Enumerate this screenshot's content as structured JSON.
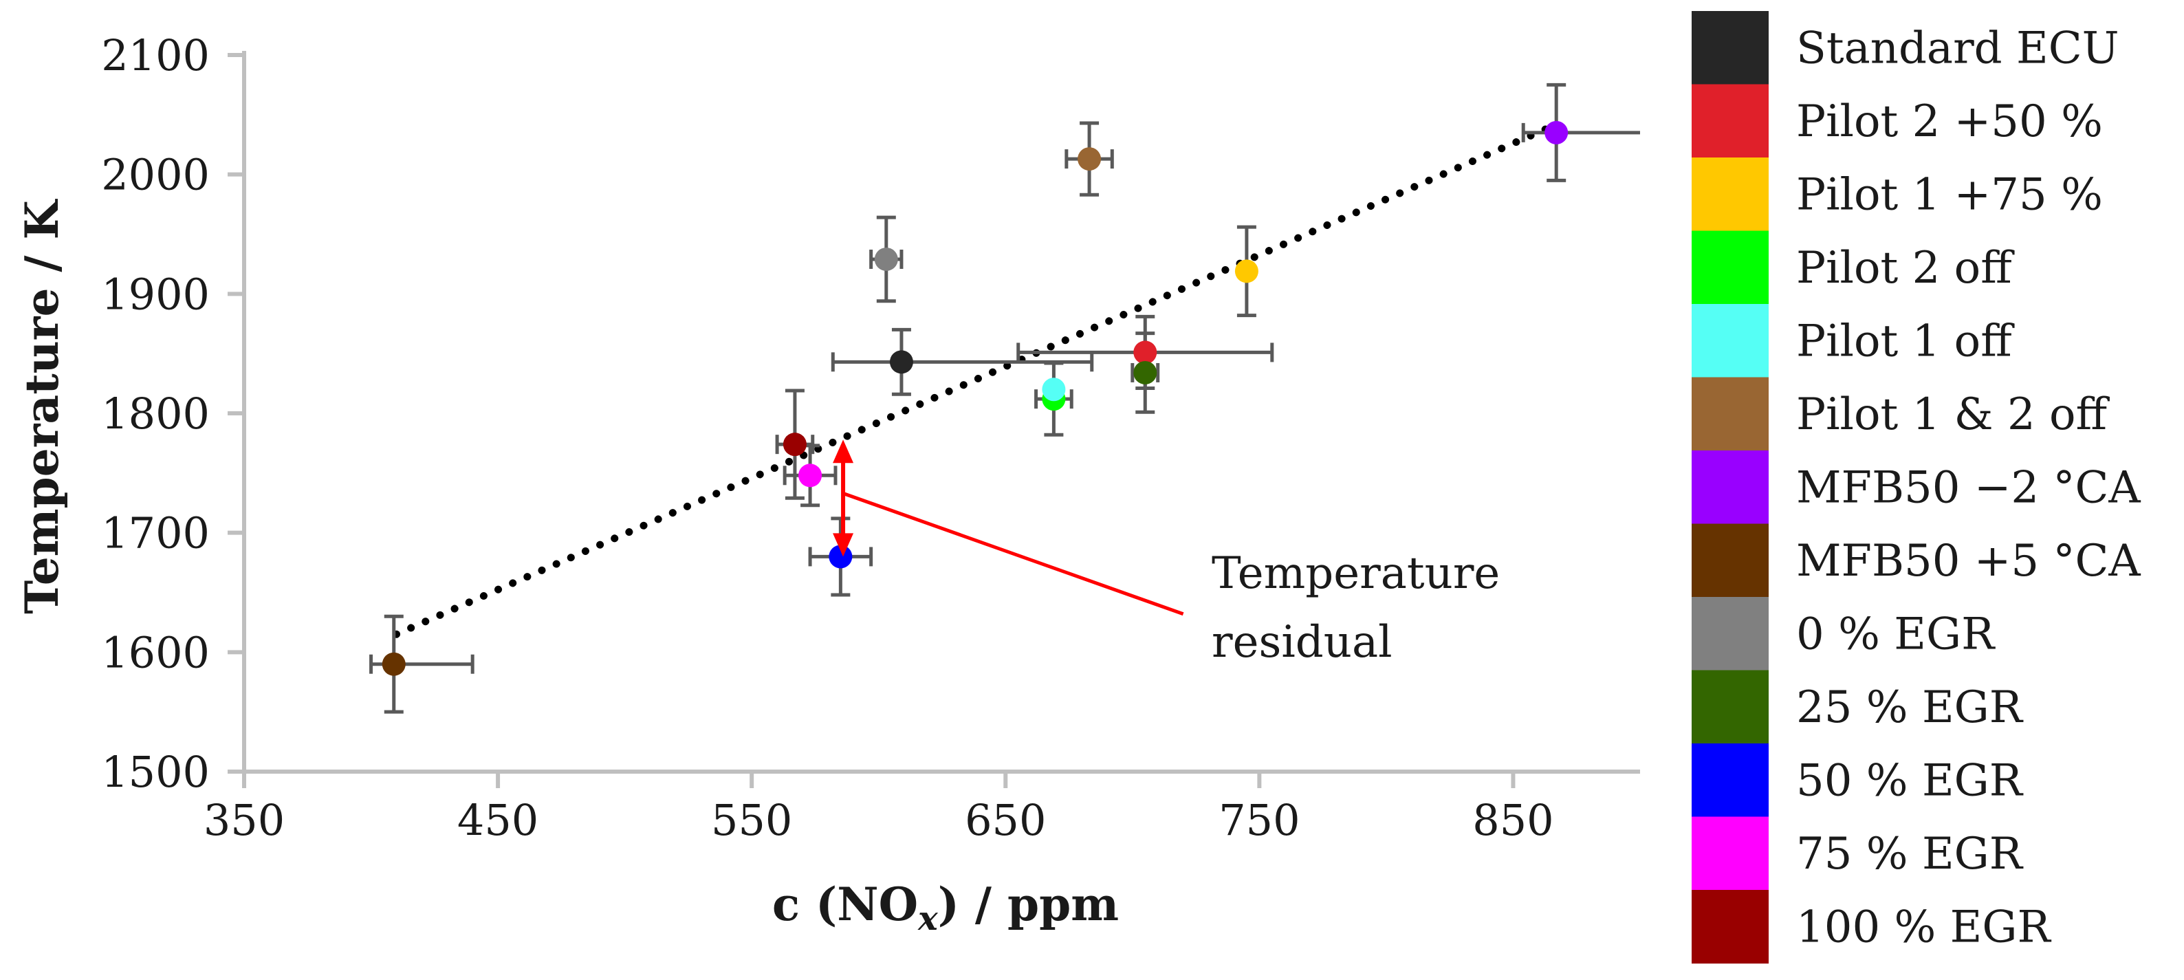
{
  "chart_data": {
    "type": "scatter",
    "title": "",
    "xlabel": "c (NO",
    "xlabel_sub": "x",
    "xlabel_suffix": ") / ppm",
    "ylabel": "Temperature / K",
    "xlim": [
      350,
      900
    ],
    "ylim": [
      1500,
      2100
    ],
    "x_ticks": [
      350,
      450,
      550,
      650,
      750,
      850
    ],
    "y_ticks": [
      1500,
      1600,
      1700,
      1800,
      1900,
      2000,
      2100
    ],
    "grid": false,
    "legend_position": "right",
    "trendline": {
      "style": "dotted",
      "color": "#000000",
      "x": [
        410,
        865
      ],
      "y": [
        1615,
        2040
      ]
    },
    "series": [
      {
        "name": "Standard ECU",
        "color": "#262626",
        "x": 609,
        "y": 1843,
        "xerr_low": 27,
        "xerr_high": 75,
        "yerr": 27
      },
      {
        "name": "Pilot 2 +50 %",
        "color": "#e0202a",
        "x": 705,
        "y": 1851,
        "xerr_low": 50,
        "xerr_high": 50,
        "yerr": 30
      },
      {
        "name": "Pilot 1 +75 %",
        "color": "#ffc800",
        "x": 745,
        "y": 1919,
        "xerr_low": 0,
        "xerr_high": 0,
        "yerr": 37
      },
      {
        "name": "Pilot 2 off",
        "color": "#00ff00",
        "x": 669,
        "y": 1812,
        "xerr_low": 7,
        "xerr_high": 7,
        "yerr": 30
      },
      {
        "name": "Pilot 1 off",
        "color": "#55fff5",
        "x": 669,
        "y": 1820,
        "xerr_low": 0,
        "xerr_high": 0,
        "yerr": 0
      },
      {
        "name": "Pilot 1 & 2 off",
        "color": "#996633",
        "x": 683,
        "y": 2013,
        "xerr_low": 9,
        "xerr_high": 9,
        "yerr": 30
      },
      {
        "name": "MFB50 −2 °CA",
        "color": "#9900ff",
        "x": 867,
        "y": 2035,
        "xerr_low": 13,
        "xerr_high": 37,
        "yerr": 40
      },
      {
        "name": "MFB50 +5 °CA",
        "color": "#663300",
        "x": 409,
        "y": 1590,
        "xerr_low": 9,
        "xerr_high": 31,
        "yerr": 40
      },
      {
        "name": "0 % EGR",
        "color": "#808080",
        "x": 603,
        "y": 1929,
        "xerr_low": 6,
        "xerr_high": 6,
        "yerr": 35
      },
      {
        "name": "25 % EGR",
        "color": "#336600",
        "x": 705,
        "y": 1834,
        "xerr_low": 5,
        "xerr_high": 5,
        "yerr": 33
      },
      {
        "name": "50 % EGR",
        "color": "#0000ff",
        "x": 585,
        "y": 1680,
        "xerr_low": 12,
        "xerr_high": 12,
        "yerr": 32
      },
      {
        "name": "75 % EGR",
        "color": "#ff00ff",
        "x": 573,
        "y": 1748,
        "xerr_low": 10,
        "xerr_high": 10,
        "yerr": 25
      },
      {
        "name": "100 % EGR",
        "color": "#990000",
        "x": 567,
        "y": 1774,
        "xerr_low": 7,
        "xerr_high": 7,
        "yerr": 45
      }
    ],
    "annotation": {
      "text_line1": "Temperature",
      "text_line2": "residual",
      "color": "#ff0000",
      "x": 586,
      "y_measured": 1680,
      "y_trend": 1778,
      "line_from": [
        586,
        1733
      ],
      "line_to": [
        720,
        1632
      ]
    },
    "colors": {
      "axis": "#bfbfbf",
      "errorbar": "#595959"
    }
  }
}
